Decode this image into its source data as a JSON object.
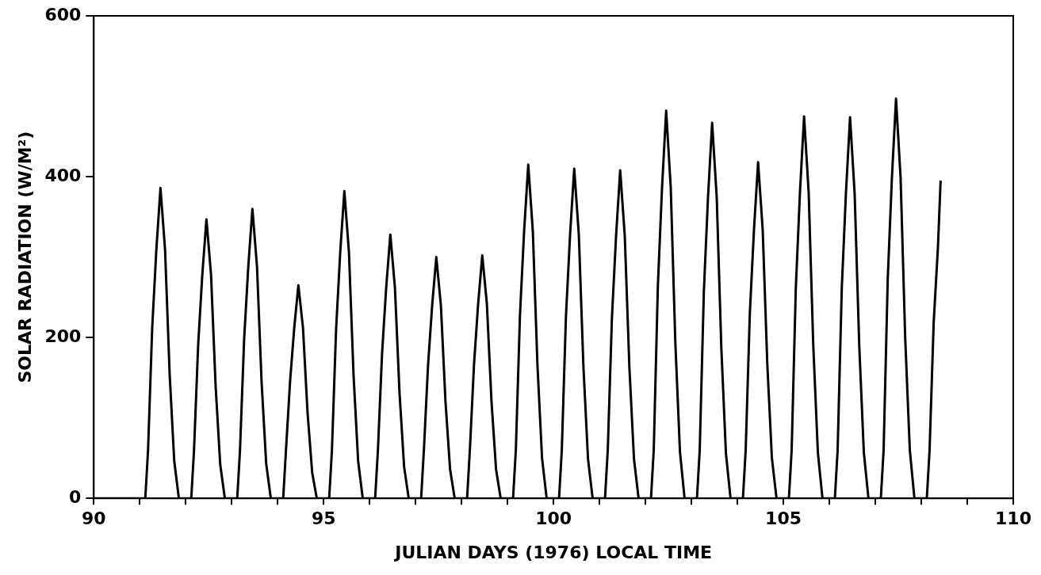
{
  "chart_data": {
    "type": "line",
    "xlabel": "JULIAN DAYS (1976) LOCAL TIME",
    "ylabel": "SOLAR RADIATION (W/M²)",
    "color": "#000000",
    "marker": "none",
    "line_style": "solid",
    "legend": false,
    "grid": false,
    "xlim": [
      90,
      110
    ],
    "ylim": [
      0,
      600
    ],
    "yticks": [
      0,
      200,
      400,
      600
    ],
    "xticks": [
      90,
      {
        "value": 91,
        "label": null
      },
      {
        "value": 92,
        "label": null
      },
      {
        "value": 93,
        "label": null
      },
      {
        "value": 94,
        "label": null
      },
      95,
      {
        "value": 96,
        "label": null
      },
      {
        "value": 97,
        "label": null
      },
      {
        "value": 98,
        "label": null
      },
      {
        "value": 99,
        "label": null
      },
      100,
      {
        "value": 101,
        "label": null
      },
      {
        "value": 102,
        "label": null
      },
      {
        "value": 103,
        "label": null
      },
      {
        "value": 104,
        "label": null
      },
      105,
      {
        "value": 106,
        "label": null
      },
      {
        "value": 107,
        "label": null
      },
      {
        "value": 108,
        "label": null
      },
      {
        "value": 109,
        "label": null
      },
      110
    ],
    "x": [
      90,
      91.12,
      91.18,
      91.27,
      91.36,
      91.45,
      91.55,
      91.65,
      91.75,
      91.85,
      92.12,
      92.18,
      92.27,
      92.36,
      92.45,
      92.55,
      92.65,
      92.75,
      92.85,
      93.12,
      93.18,
      93.27,
      93.36,
      93.45,
      93.55,
      93.65,
      93.75,
      93.85,
      94.12,
      94.18,
      94.27,
      94.36,
      94.45,
      94.55,
      94.65,
      94.75,
      94.85,
      95.12,
      95.18,
      95.27,
      95.36,
      95.45,
      95.55,
      95.65,
      95.75,
      95.85,
      96.12,
      96.18,
      96.27,
      96.36,
      96.45,
      96.55,
      96.65,
      96.75,
      96.85,
      97.12,
      97.18,
      97.27,
      97.36,
      97.45,
      97.55,
      97.65,
      97.75,
      97.85,
      98.12,
      98.18,
      98.27,
      98.36,
      98.45,
      98.55,
      98.65,
      98.75,
      98.85,
      99.12,
      99.18,
      99.27,
      99.36,
      99.45,
      99.55,
      99.65,
      99.75,
      99.85,
      100.12,
      100.18,
      100.27,
      100.36,
      100.45,
      100.55,
      100.65,
      100.75,
      100.85,
      101.12,
      101.18,
      101.27,
      101.36,
      101.45,
      101.55,
      101.65,
      101.75,
      101.85,
      102.12,
      102.18,
      102.27,
      102.36,
      102.45,
      102.55,
      102.65,
      102.75,
      102.85,
      103.12,
      103.18,
      103.27,
      103.36,
      103.45,
      103.55,
      103.65,
      103.75,
      103.85,
      104.12,
      104.18,
      104.27,
      104.36,
      104.45,
      104.55,
      104.65,
      104.75,
      104.85,
      105.12,
      105.18,
      105.27,
      105.36,
      105.45,
      105.55,
      105.65,
      105.75,
      105.85,
      106.12,
      106.18,
      106.27,
      106.36,
      106.45,
      106.55,
      106.65,
      106.75,
      106.85,
      107.12,
      107.18,
      107.27,
      107.36,
      107.45,
      107.55,
      107.65,
      107.75,
      107.85,
      108.12,
      108.18,
      108.27,
      108.36,
      108.42
    ],
    "values": [
      0,
      0,
      60,
      212,
      309,
      386,
      309,
      154,
      46,
      0,
      0,
      60,
      191,
      278,
      347,
      278,
      139,
      42,
      0,
      0,
      60,
      198,
      288,
      360,
      288,
      144,
      43,
      0,
      0,
      60,
      146,
      212,
      265,
      212,
      106,
      32,
      0,
      0,
      60,
      210,
      306,
      382,
      306,
      153,
      46,
      0,
      0,
      60,
      180,
      262,
      328,
      262,
      131,
      39,
      0,
      0,
      60,
      165,
      240,
      300,
      240,
      120,
      36,
      0,
      0,
      60,
      166,
      242,
      302,
      242,
      121,
      36,
      0,
      0,
      60,
      228,
      332,
      415,
      332,
      166,
      50,
      0,
      0,
      60,
      226,
      328,
      410,
      328,
      164,
      49,
      0,
      0,
      60,
      224,
      326,
      408,
      326,
      163,
      49,
      0,
      0,
      60,
      265,
      386,
      482,
      386,
      193,
      58,
      0,
      0,
      60,
      257,
      374,
      467,
      374,
      187,
      56,
      0,
      0,
      60,
      230,
      334,
      418,
      334,
      167,
      50,
      0,
      0,
      60,
      261,
      380,
      475,
      380,
      190,
      57,
      0,
      0,
      60,
      261,
      379,
      474,
      379,
      190,
      57,
      0,
      0,
      60,
      273,
      398,
      497,
      398,
      199,
      60,
      0,
      0,
      60,
      220,
      310,
      395
    ]
  }
}
